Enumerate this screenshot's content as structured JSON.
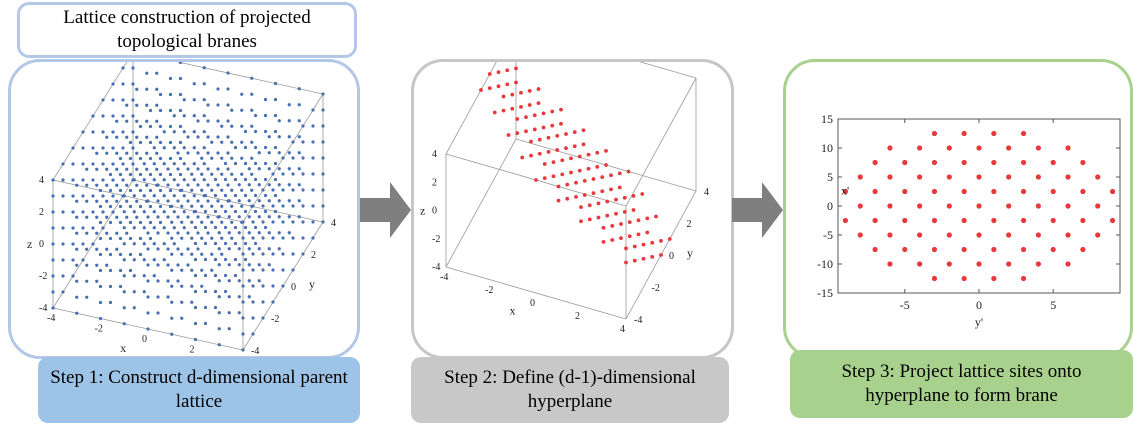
{
  "title": "Lattice construction of projected topological branes",
  "steps": [
    {
      "caption": "Step 1: Construct d-dimensional parent lattice"
    },
    {
      "caption": "Step 2: Define (d-1)-dimensional hyperplane"
    },
    {
      "caption": "Step 3: Project lattice sites onto hyperplane to form brane"
    }
  ],
  "colors": {
    "lattice_points": "#4a6fb0",
    "plane_points": "#e8383b",
    "panel1_border": "#b4c7e7",
    "panel2_border": "#c6c6c6",
    "panel3_border": "#a9d18e",
    "arrow": "#7f7f7f"
  },
  "chart_data": [
    {
      "type": "scatter",
      "subtype": "3d-cube",
      "xlabel": "x",
      "ylabel": "y",
      "zlabel": "z",
      "xlim": [
        -4,
        4
      ],
      "ylim": [
        -4,
        4
      ],
      "zlim": [
        -4,
        4
      ],
      "x_ticks": [
        "-4",
        "-2",
        "0",
        "2",
        "4"
      ],
      "y_ticks": [
        "4",
        "2",
        "0",
        "-2",
        "-4"
      ],
      "z_ticks": [
        "4",
        "2",
        "0",
        "-2",
        "-4"
      ]
    },
    {
      "type": "scatter",
      "subtype": "3d-plane",
      "xlabel": "x",
      "ylabel": "y",
      "zlabel": "z",
      "x_ticks": [
        "-4",
        "-2",
        "0",
        "2",
        "4"
      ],
      "y_ticks": [
        "4",
        "2",
        "0",
        "-2",
        "-4"
      ],
      "z_ticks": [
        "4",
        "2",
        "0",
        "-2",
        "-4"
      ]
    },
    {
      "type": "scatter",
      "subtype": "2d",
      "xlabel": "y'",
      "ylabel": "x'",
      "xlim": [
        -9.5,
        9.5
      ],
      "ylim": [
        -15,
        15
      ],
      "x_ticks": [
        "-5",
        "0",
        "5"
      ],
      "y_ticks": [
        "15",
        "10",
        "5",
        "0",
        "-5",
        "-10",
        "-15"
      ],
      "lattice_x_spacing": 1,
      "lattice_y_spacing": 2.5
    }
  ]
}
